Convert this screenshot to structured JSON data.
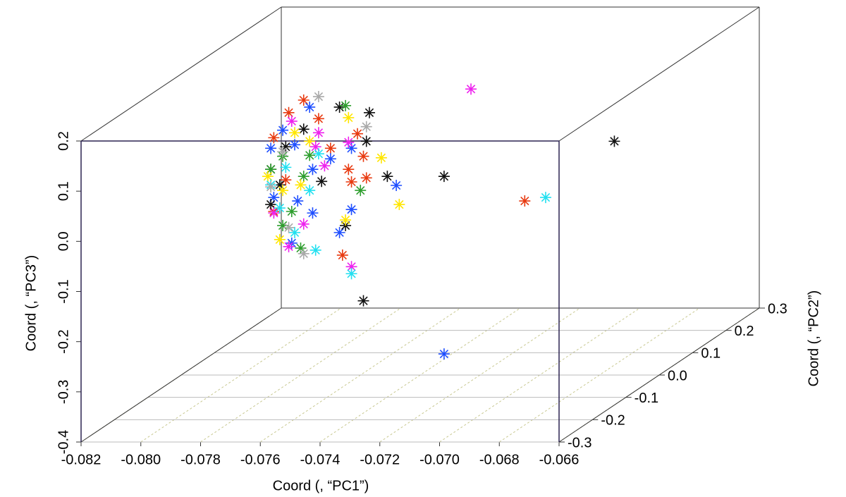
{
  "chart_data": {
    "type": "scatter3d",
    "x_label": "Coord (, “PC1”)",
    "y_label": "Coord (, “PC2”)",
    "z_label": "Coord (, “PC3”)",
    "xlim": [
      -0.082,
      -0.066
    ],
    "xticks": [
      -0.082,
      {
        "value": -0.08,
        "label": "-0.080"
      },
      -0.078,
      -0.076,
      -0.074,
      -0.072,
      {
        "value": -0.07,
        "label": "-0.070"
      },
      -0.068,
      -0.066
    ],
    "ylim": [
      -0.3,
      0.3
    ],
    "yticks": [
      -0.3,
      -0.2,
      -0.1,
      {
        "value": 0,
        "label": "0.0"
      },
      0.1,
      0.2,
      0.3
    ],
    "zlim": [
      -0.4,
      0.2
    ],
    "zticks": [
      -0.4,
      -0.3,
      -0.2,
      -0.1,
      {
        "value": 0,
        "label": "0.0"
      },
      0.1,
      0.2
    ],
    "grid": true,
    "series": [
      {
        "color": "#e83a10",
        "x": [
          -0.0779,
          -0.0774,
          -0.0761,
          -0.0759,
          -0.0764,
          -0.0758,
          -0.0763,
          -0.0789,
          -0.0785,
          -0.0789,
          -0.0766,
          -0.077,
          -0.0784,
          -0.0705
        ],
        "y": [
          0,
          0,
          0,
          0,
          0,
          0,
          0,
          0,
          0,
          0,
          0,
          0,
          0,
          0
        ],
        "z": [
          0.148,
          0.111,
          0.081,
          0.036,
          0.01,
          -0.007,
          -0.015,
          0.073,
          -0.011,
          -0.074,
          -0.161,
          0.052,
          0.123,
          -0.053
        ]
      },
      {
        "color": "#1f4fff",
        "x": [
          -0.0777,
          -0.0786,
          -0.079,
          -0.0782,
          -0.0776,
          -0.077,
          -0.0763,
          -0.0763,
          -0.0767,
          -0.0776,
          -0.0781,
          -0.0789,
          -0.0783,
          -0.0748,
          -0.0732
        ],
        "y": [
          0,
          0,
          0,
          0,
          0,
          0,
          0,
          0,
          0,
          0,
          0,
          0,
          0,
          0,
          0
        ],
        "z": [
          0.134,
          0.088,
          0.052,
          0.059,
          0.01,
          0.031,
          0.052,
          -0.07,
          -0.116,
          -0.077,
          -0.053,
          -0.046,
          -0.137,
          -0.022,
          -0.358
        ]
      },
      {
        "color": "#111111",
        "x": [
          -0.0767,
          -0.0757,
          -0.0779,
          -0.0785,
          -0.079,
          -0.0787,
          -0.079,
          -0.0773,
          -0.0758,
          -0.0765,
          -0.0751,
          -0.0732,
          -0.0759,
          -0.0675
        ],
        "y": [
          0,
          0,
          0,
          0,
          0,
          0,
          0,
          0,
          0,
          0,
          0,
          0,
          0,
          0
        ],
        "z": [
          0.134,
          0.123,
          0.09,
          0.055,
          0.01,
          -0.021,
          -0.06,
          -0.014,
          0.066,
          -0.102,
          -0.004,
          -0.004,
          -0.252,
          0.066
        ]
      },
      {
        "color": "#2e9e2e",
        "x": [
          -0.0765,
          -0.0779,
          -0.0777,
          -0.079,
          -0.0783,
          -0.078,
          -0.076,
          -0.0786,
          -0.0786
        ],
        "y": [
          0,
          0,
          0,
          0,
          0,
          0,
          0,
          0,
          0
        ],
        "z": [
          0.137,
          -0.004,
          0.038,
          0.01,
          -0.074,
          -0.147,
          -0.032,
          -0.102,
          0.036
        ]
      },
      {
        "color": "#ffe600",
        "x": [
          -0.0764,
          -0.0782,
          -0.0777,
          -0.0753,
          -0.0747,
          -0.0786,
          -0.078,
          -0.0765,
          -0.0787,
          -0.0791
        ],
        "y": [
          0,
          0,
          0,
          0,
          0,
          0,
          0,
          0,
          0,
          0
        ],
        "z": [
          0.113,
          0.083,
          0.066,
          0.033,
          -0.06,
          -0.032,
          -0.021,
          -0.091,
          -0.13,
          -0.004
        ]
      },
      {
        "color": "#ee22ee",
        "x": [
          -0.0783,
          -0.0774,
          -0.0764,
          -0.0772,
          -0.0775,
          -0.0789,
          -0.0784,
          -0.0763,
          -0.0723,
          -0.0779
        ],
        "y": [
          0,
          0,
          0,
          0,
          0,
          0,
          0,
          0,
          0,
          0
        ],
        "z": [
          0.106,
          0.083,
          0.064,
          0.017,
          0.055,
          -0.077,
          -0.144,
          -0.184,
          0.17,
          -0.099
        ]
      },
      {
        "color": "#22e0f0",
        "x": [
          -0.0774,
          -0.0785,
          -0.079,
          -0.0775,
          -0.0763,
          -0.0777,
          -0.0698,
          -0.0787,
          -0.0782
        ],
        "y": [
          0,
          0,
          0,
          0,
          0,
          0,
          0,
          0,
          0
        ],
        "z": [
          0.041,
          0.014,
          -0.021,
          -0.151,
          -0.198,
          -0.032,
          -0.046,
          -0.067,
          -0.116
        ]
      },
      {
        "color": "#aaaaaa",
        "x": [
          -0.0774,
          -0.0758,
          -0.0786,
          -0.079,
          -0.0779,
          -0.0784
        ],
        "y": [
          0,
          0,
          0,
          0,
          0,
          0
        ],
        "z": [
          0.155,
          0.095,
          0.045,
          -0.025,
          -0.158,
          -0.106
        ]
      }
    ]
  }
}
